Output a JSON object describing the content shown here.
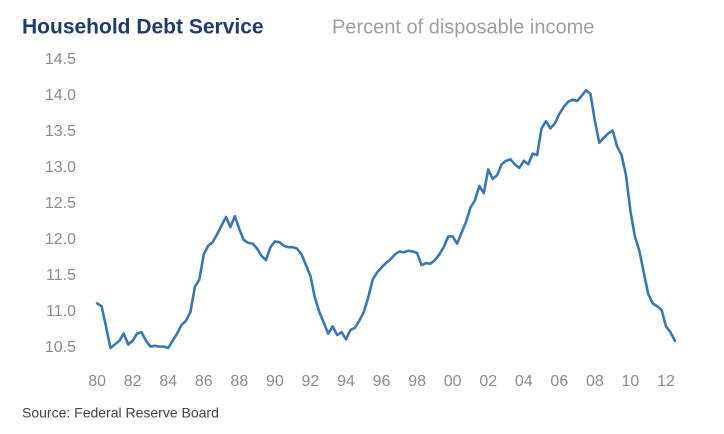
{
  "chart_data": {
    "type": "line",
    "title": "Household Debt Service",
    "subtitle": "Percent of disposable income",
    "source": "Source:  Federal Reserve Board",
    "color": "#3b78b1",
    "x": [
      1980,
      1980.25,
      1980.5,
      1980.75,
      1981,
      1981.25,
      1981.5,
      1981.75,
      1982,
      1982.25,
      1982.5,
      1982.75,
      1983,
      1983.25,
      1983.5,
      1983.75,
      1984,
      1984.25,
      1984.5,
      1984.75,
      1985,
      1985.25,
      1985.5,
      1985.75,
      1986,
      1986.25,
      1986.5,
      1986.75,
      1987,
      1987.25,
      1987.5,
      1987.75,
      1988,
      1988.25,
      1988.5,
      1988.75,
      1989,
      1989.25,
      1989.5,
      1989.75,
      1990,
      1990.25,
      1990.5,
      1990.75,
      1991,
      1991.25,
      1991.5,
      1991.75,
      1992,
      1992.25,
      1992.5,
      1992.75,
      1993,
      1993.25,
      1993.5,
      1993.75,
      1994,
      1994.25,
      1994.5,
      1994.75,
      1995,
      1995.25,
      1995.5,
      1995.75,
      1996,
      1996.25,
      1996.5,
      1996.75,
      1997,
      1997.25,
      1997.5,
      1997.75,
      1998,
      1998.25,
      1998.5,
      1998.75,
      1999,
      1999.25,
      1999.5,
      1999.75,
      2000,
      2000.25,
      2000.5,
      2000.75,
      2001,
      2001.25,
      2001.5,
      2001.75,
      2002,
      2002.25,
      2002.5,
      2002.75,
      2003,
      2003.25,
      2003.5,
      2003.75,
      2004,
      2004.25,
      2004.5,
      2004.75,
      2005,
      2005.25,
      2005.5,
      2005.75,
      2006,
      2006.25,
      2006.5,
      2006.75,
      2007,
      2007.25,
      2007.5,
      2007.75,
      2008,
      2008.25,
      2008.5,
      2008.75,
      2009,
      2009.25,
      2009.5,
      2009.75,
      2010,
      2010.25,
      2010.5,
      2010.75,
      2011,
      2011.25,
      2011.5,
      2011.75,
      2012,
      2012.25,
      2012.5
    ],
    "values": [
      11.12,
      11.08,
      10.8,
      10.5,
      10.55,
      10.6,
      10.7,
      10.55,
      10.6,
      10.7,
      10.72,
      10.6,
      10.52,
      10.53,
      10.52,
      10.52,
      10.5,
      10.6,
      10.7,
      10.82,
      10.88,
      11.0,
      11.35,
      11.45,
      11.8,
      11.92,
      11.97,
      12.08,
      12.2,
      12.32,
      12.18,
      12.33,
      12.15,
      12.0,
      11.96,
      11.95,
      11.88,
      11.78,
      11.72,
      11.9,
      11.98,
      11.97,
      11.92,
      11.9,
      11.9,
      11.88,
      11.8,
      11.65,
      11.5,
      11.2,
      11.0,
      10.85,
      10.7,
      10.8,
      10.68,
      10.72,
      10.62,
      10.75,
      10.78,
      10.88,
      11.0,
      11.2,
      11.45,
      11.55,
      11.62,
      11.68,
      11.73,
      11.8,
      11.84,
      11.83,
      11.85,
      11.84,
      11.82,
      11.65,
      11.68,
      11.67,
      11.72,
      11.8,
      11.9,
      12.05,
      12.05,
      11.95,
      12.1,
      12.25,
      12.45,
      12.55,
      12.75,
      12.65,
      12.98,
      12.85,
      12.9,
      13.05,
      13.1,
      13.12,
      13.05,
      13.0,
      13.1,
      13.05,
      13.2,
      13.18,
      13.55,
      13.65,
      13.55,
      13.62,
      13.75,
      13.85,
      13.92,
      13.95,
      13.93,
      14.0,
      14.08,
      14.03,
      13.65,
      13.35,
      13.42,
      13.48,
      13.52,
      13.3,
      13.18,
      12.9,
      12.4,
      12.05,
      11.85,
      11.55,
      11.25,
      11.12,
      11.08,
      11.03,
      10.8,
      10.72,
      10.6
    ],
    "xlim": [
      1979.6,
      2012.9
    ],
    "xticks": [
      {
        "value": 1980,
        "label": "80"
      },
      {
        "value": 1982,
        "label": "82"
      },
      {
        "value": 1984,
        "label": "84"
      },
      {
        "value": 1986,
        "label": "86"
      },
      {
        "value": 1988,
        "label": "88"
      },
      {
        "value": 1990,
        "label": "90"
      },
      {
        "value": 1992,
        "label": "92"
      },
      {
        "value": 1994,
        "label": "94"
      },
      {
        "value": 1996,
        "label": "96"
      },
      {
        "value": 1998,
        "label": "98"
      },
      {
        "value": 2000,
        "label": "00"
      },
      {
        "value": 2002,
        "label": "02"
      },
      {
        "value": 2004,
        "label": "04"
      },
      {
        "value": 2006,
        "label": "06"
      },
      {
        "value": 2008,
        "label": "08"
      },
      {
        "value": 2010,
        "label": "10"
      },
      {
        "value": 2012,
        "label": "12"
      }
    ],
    "ylim": [
      10.5,
      14.5
    ],
    "yticks": [
      10.5,
      {
        "value": 11,
        "label": "11.0"
      },
      11.5,
      {
        "value": 12,
        "label": "12.0"
      },
      12.5,
      {
        "value": 13,
        "label": "13.0"
      },
      13.5,
      {
        "value": 14,
        "label": "14.0"
      },
      14.5
    ],
    "grid": false
  }
}
